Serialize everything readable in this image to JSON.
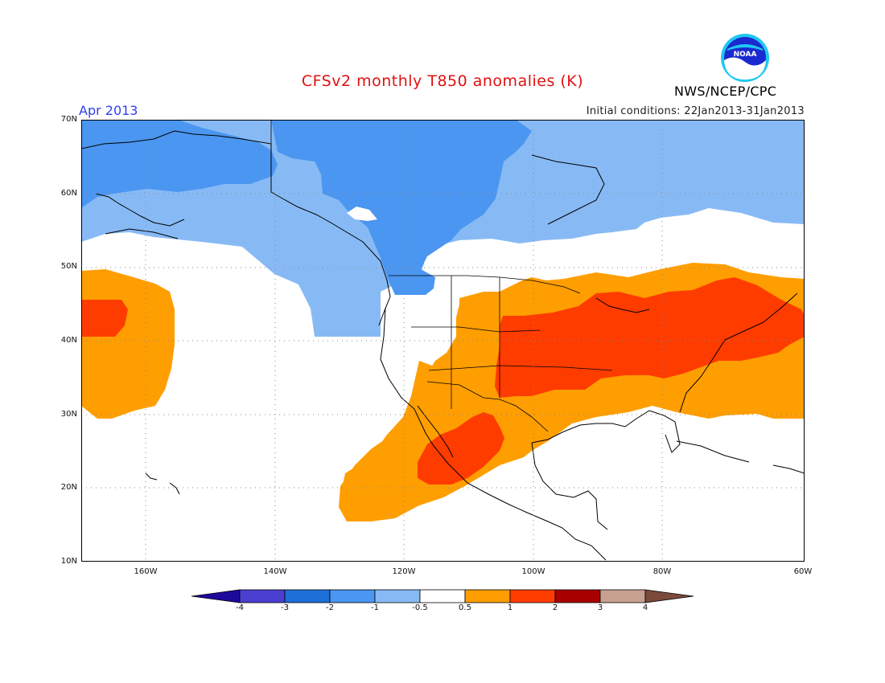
{
  "title": "CFSv2 monthly T850 anomalies (K)",
  "valid_month": "Apr 2013",
  "initial_conditions": "Initial conditions: 22Jan2013-31Jan2013",
  "agency": "NWS/NCEP/CPC",
  "logo": {
    "name": "noaa-logo",
    "text": "NOAA"
  },
  "map": {
    "lon_range": [
      -172,
      -60
    ],
    "lat_range": [
      10,
      70
    ],
    "grid": "dotted",
    "lat_labels": [
      "70N",
      "60N",
      "50N",
      "40N",
      "30N",
      "20N",
      "10N"
    ],
    "lon_labels": [
      "160W",
      "140W",
      "120W",
      "100W",
      "80W",
      "60W"
    ]
  },
  "legend": {
    "labels": [
      "-4",
      "-3",
      "-2",
      "-1",
      "-0.5",
      "0.5",
      "1",
      "2",
      "3",
      "4"
    ],
    "colors": [
      "#1c0a9c",
      "#4a3fd0",
      "#1f6fd8",
      "#4b96f0",
      "#87baf5",
      "#ffffff",
      "#ff9e00",
      "#ff3c00",
      "#a80000",
      "#c8a090",
      "#7a4a3a"
    ]
  },
  "anomaly_regions": [
    {
      "level": "-1 to -0.5",
      "color": "#87baf5",
      "area": "Alaska, Canada, Arctic, NE Pacific"
    },
    {
      "level": "-2 to -1",
      "color": "#4b96f0",
      "area": "Alaska, W Canada"
    },
    {
      "level": "0.5 to 1",
      "color": "#ff9e00",
      "area": "Central/E US, Mexico, Atlantic, central N Pacific"
    },
    {
      "level": "1 to 2",
      "color": "#ff3c00",
      "area": "Central US, NE US, Mexico, central N Pacific"
    }
  ]
}
